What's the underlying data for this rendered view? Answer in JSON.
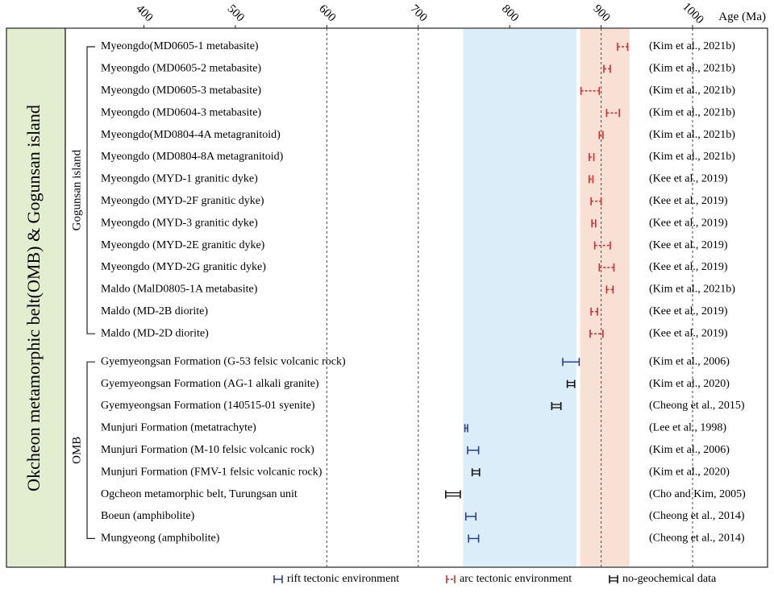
{
  "chart_data": {
    "type": "range",
    "title": "Okcheon metamorphic belt(OMB) & Gogunsan island",
    "xlabel": "Age (Ma)",
    "xticks": [
      400,
      500,
      600,
      700,
      800,
      900,
      1000
    ],
    "xlim": [
      314,
      1082
    ],
    "gridlines": [
      600,
      700,
      900,
      1000
    ],
    "bands": [
      {
        "name": "rift-band",
        "from": 749,
        "to": 873,
        "color": "#dcedfa"
      },
      {
        "name": "arc-band",
        "from": 877,
        "to": 931,
        "color": "#f8e0d4"
      }
    ],
    "groups": [
      {
        "label": "Gogunsan island",
        "first": 0,
        "last": 13
      },
      {
        "label": "OMB",
        "first": 14,
        "last": 22
      }
    ],
    "envs": {
      "rift": {
        "label": "rift tectonic environment",
        "color": "#2a3f8f"
      },
      "arc": {
        "label": "arc tectonic environment",
        "color": "#d42a2a"
      },
      "nodata": {
        "label": "no-geochemical data",
        "color": "#111111"
      }
    },
    "samples": [
      {
        "label": "Myeongdo(MD0605-1 metabasite)",
        "ref": "(Kim et al., 2021b)",
        "min": 918,
        "max": 929,
        "env": "arc"
      },
      {
        "label": "Myeongdo (MD0605-2 metabasite)",
        "ref": "(Kim et al., 2021b)",
        "min": 903,
        "max": 910,
        "env": "arc"
      },
      {
        "label": "Myeongdo (MD0605-3 metabasite)",
        "ref": "(Kim et al., 2021b)",
        "min": 878,
        "max": 898,
        "env": "arc"
      },
      {
        "label": "Myeongdo (MD0604-3 metabasite)",
        "ref": "(Kim et al., 2021b)",
        "min": 906,
        "max": 920,
        "env": "arc"
      },
      {
        "label": "Myeongdo(MD0804-4A metagranitoid)",
        "ref": "(Kim et al., 2021b)",
        "min": 898,
        "max": 902,
        "env": "arc"
      },
      {
        "label": "Myeongdo (MD0804-8A metagranitoid)",
        "ref": "(Kim et al., 2021b)",
        "min": 887,
        "max": 892,
        "env": "arc"
      },
      {
        "label": "Myeongdo (MYD-1 granitic dyke)",
        "ref": "(Kee et al., 2019)",
        "min": 887,
        "max": 891,
        "env": "arc"
      },
      {
        "label": "Myeongdo (MYD-2F granitic dyke)",
        "ref": "(Kee et al., 2019)",
        "min": 889,
        "max": 900,
        "env": "arc"
      },
      {
        "label": "Myeongdo (MYD-3 granitic dyke)",
        "ref": "(Kee et al., 2019)",
        "min": 890,
        "max": 894,
        "env": "arc"
      },
      {
        "label": "Myeongdo (MYD-2E granitic dyke)",
        "ref": "(Kee et al., 2019)",
        "min": 893,
        "max": 910,
        "env": "arc"
      },
      {
        "label": "Myeongdo (MYD-2G granitic dyke)",
        "ref": "(Kee et al., 2019)",
        "min": 898,
        "max": 914,
        "env": "arc"
      },
      {
        "label": "Maldo (MalD0805-1A metabasite)",
        "ref": "(Kim et al., 2021b)",
        "min": 906,
        "max": 913,
        "env": "arc"
      },
      {
        "label": "Maldo (MD-2B diorite)",
        "ref": "(Kee et al., 2019)",
        "min": 889,
        "max": 896,
        "env": "arc"
      },
      {
        "label": "Maldo (MD-2D diorite)",
        "ref": "(Kee et al., 2019)",
        "min": 888,
        "max": 902,
        "env": "arc"
      },
      {
        "label": "Gyemyeongsan Formation (G-53 felsic volcanic rock)",
        "ref": "(Kim et al., 2006)",
        "min": 858,
        "max": 876,
        "env": "rift"
      },
      {
        "label": "Gyemyeongsan Formation (AG-1 alkali granite)",
        "ref": "(Kim et al., 2020)",
        "min": 863,
        "max": 871,
        "env": "nodata"
      },
      {
        "label": "Gyemyeongsan Formation (140515-01 syenite)",
        "ref": "(Cheong et al., 2015)",
        "min": 846,
        "max": 856,
        "env": "nodata"
      },
      {
        "label": "Munjuri Formation (metatrachyte)",
        "ref": "(Lee et al., 1998)",
        "min": 751,
        "max": 754,
        "env": "rift"
      },
      {
        "label": "Munjuri Formation (M-10 felsic volcanic rock)",
        "ref": "(Kim et al., 2006)",
        "min": 754,
        "max": 766,
        "env": "rift"
      },
      {
        "label": "Munjuri Formation (FMV-1 felsic volcanic rock)",
        "ref": "(Kim et al., 2020)",
        "min": 759,
        "max": 767,
        "env": "nodata"
      },
      {
        "label": "Ogcheon metamorphic belt, Turungsan unit",
        "ref": "(Cho and Kim, 2005)",
        "min": 730,
        "max": 746,
        "env": "nodata"
      },
      {
        "label": "Boeun (amphibolite)",
        "ref": "(Cheong et al., 2014)",
        "min": 752,
        "max": 763,
        "env": "rift"
      },
      {
        "label": "Mungyeong (amphibolite)",
        "ref": "(Cheong et al., 2014)",
        "min": 755,
        "max": 766,
        "env": "rift"
      }
    ]
  }
}
